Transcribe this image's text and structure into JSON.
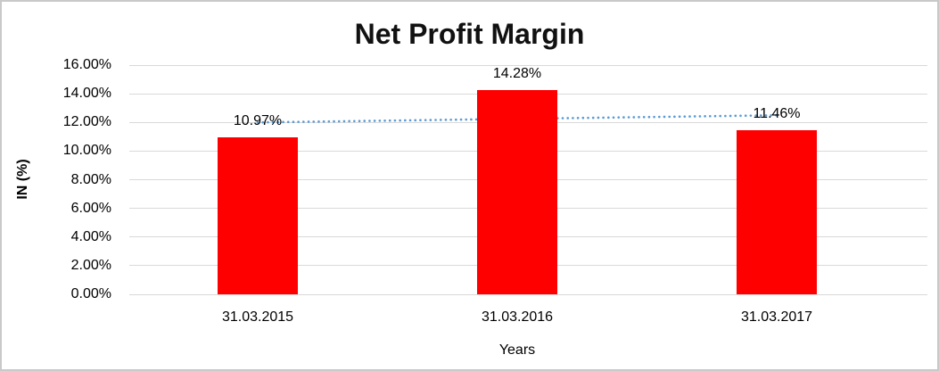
{
  "chart": {
    "title": "Net Profit Margin",
    "y_axis_title": "IN (%)",
    "x_axis_title": "Years",
    "colors": {
      "bar": "#ff0000",
      "trendline": "#5b9bd5",
      "gridline": "#d9d9d9",
      "text": "#000000",
      "frame_border": "#c9c9c9",
      "background": "#ffffff"
    }
  },
  "chart_data": {
    "type": "bar",
    "title": "Net Profit Margin",
    "xlabel": "Years",
    "ylabel": "IN (%)",
    "categories": [
      "31.03.2015",
      "31.03.2016",
      "31.03.2017"
    ],
    "values": [
      10.97,
      14.28,
      11.46
    ],
    "data_labels": [
      "10.97%",
      "14.28%",
      "11.46%"
    ],
    "ylim": [
      0,
      16
    ],
    "ytick_values": [
      0,
      2,
      4,
      6,
      8,
      10,
      12,
      14,
      16
    ],
    "ytick_labels": [
      "0.00%",
      "2.00%",
      "4.00%",
      "6.00%",
      "8.00%",
      "10.00%",
      "12.00%",
      "14.00%",
      "16.00%"
    ],
    "grid": true,
    "legend": false,
    "bar_color": "#ff0000",
    "trendline": {
      "type": "linear",
      "style": "dotted",
      "color": "#5b9bd5",
      "start_value": 12.0,
      "end_value": 12.5
    }
  }
}
